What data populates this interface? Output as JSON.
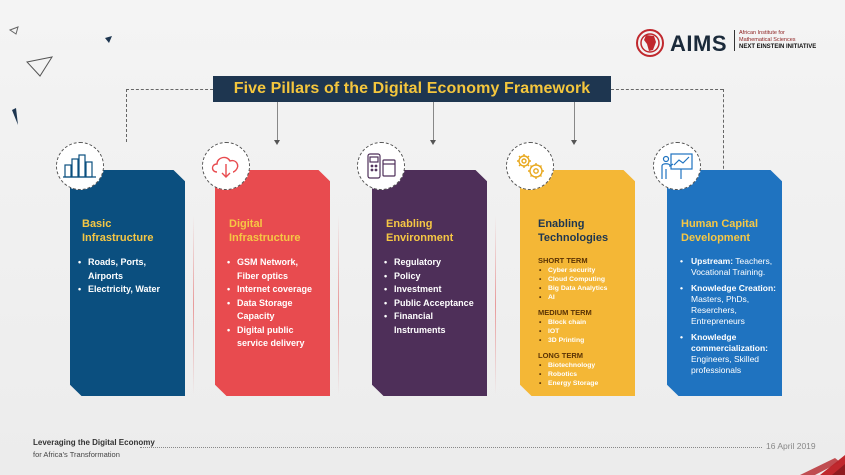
{
  "title": "Five Pillars of the Digital Economy Framework",
  "logo": {
    "name": "AIMS",
    "line1": "African Institute for",
    "line2": "Mathematical Sciences",
    "line3": "NEXT EINSTEIN INITIATIVE"
  },
  "pillars": [
    {
      "title1": "Basic",
      "title2": "Infrastructure",
      "icon": "buildings-icon",
      "color": "#0b4f7f",
      "items": [
        "Roads, Ports,",
        "Airports",
        "Electricity, Water"
      ]
    },
    {
      "title1": "Digital",
      "title2": "Infrastructure",
      "icon": "cloud-download-icon",
      "color": "#e84b4f",
      "items": [
        "GSM Network,",
        "Fiber optics",
        "Internet coverage",
        "Data Storage",
        "Capacity",
        "Digital public",
        "service delivery"
      ]
    },
    {
      "title1": "Enabling",
      "title2": "Environment",
      "icon": "pos-terminal-icon",
      "color": "#4e2f59",
      "items": [
        "Regulatory",
        "Policy",
        "Investment",
        "Public Acceptance",
        "Financial",
        "Instruments"
      ]
    },
    {
      "title1": "Enabling",
      "title2": "Technologies",
      "icon": "gears-icon",
      "color": "#f4b736",
      "short_term": "SHORT TERM",
      "short_items": [
        "Cyber security",
        "Cloud Computing",
        "Big Data Analytics",
        "AI"
      ],
      "medium_term": "MEDIUM TERM",
      "medium_items": [
        "Block chain",
        "IOT",
        "3D Printing"
      ],
      "long_term": "LONG TERM",
      "long_items": [
        "Biotechnology",
        "Robotics",
        "Energy Storage"
      ]
    },
    {
      "title1": "Human Capital",
      "title2": "Development",
      "icon": "teacher-board-icon",
      "color": "#1f73c0",
      "items": [
        {
          "bold": "Upstream:",
          "text": " Teachers, Vocational Training."
        },
        {
          "bold": "Knowledge Creation:",
          "text": " Masters, PhDs, Reserchers, Entrepreneurs"
        },
        {
          "bold": "Knowledge commercialization:",
          "text": " Engineers, Skilled professionals"
        }
      ]
    }
  ],
  "footer": {
    "line1": "Leveraging the Digital Economy",
    "line2": "for Africa's Transformation",
    "date": "16 April 2019"
  }
}
